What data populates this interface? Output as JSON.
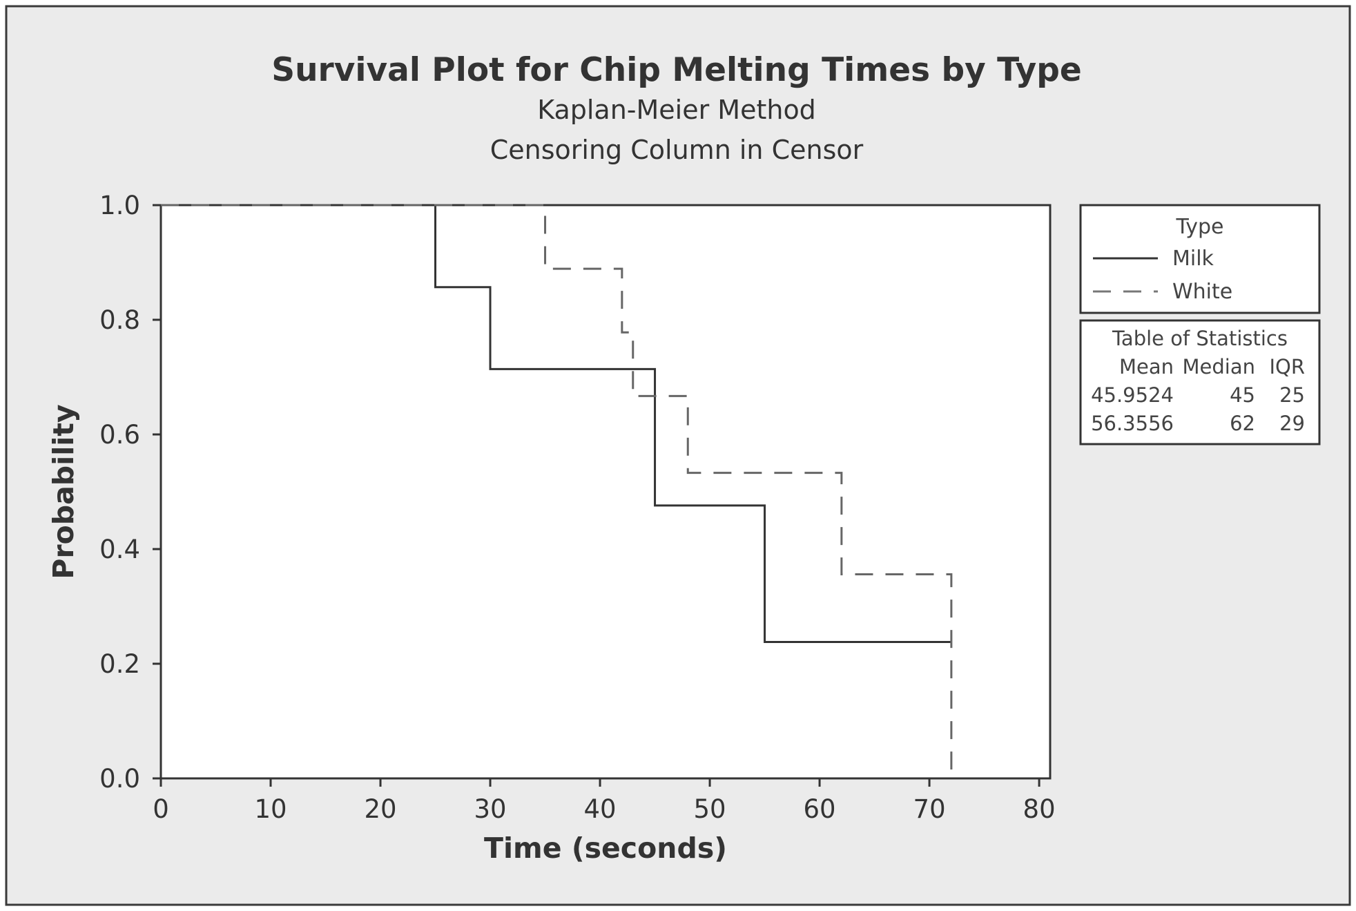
{
  "chart_data": {
    "type": "line",
    "subtype": "kaplan-meier-step",
    "title": "Survival Plot for Chip Melting Times by Type",
    "subtitle": [
      "Kaplan-Meier Method",
      "Censoring Column in Censor"
    ],
    "xlabel": "Time (seconds)",
    "ylabel": "Probability",
    "xlim": [
      0,
      81
    ],
    "ylim": [
      0,
      1
    ],
    "xticks": [
      "0",
      "10",
      "20",
      "30",
      "40",
      "50",
      "60",
      "70",
      "80"
    ],
    "yticks": [
      "0.0",
      "0.2",
      "0.4",
      "0.6",
      "0.8",
      "1.0"
    ],
    "grid": false,
    "legend": {
      "title": "Type",
      "position": "right",
      "entries": [
        "Milk",
        "White"
      ]
    },
    "series": [
      {
        "name": "Milk",
        "style": "solid",
        "color": "#333333",
        "x": [
          0,
          25,
          30,
          45,
          55,
          72
        ],
        "y": [
          1.0,
          0.857,
          0.714,
          0.476,
          0.238,
          0.238
        ]
      },
      {
        "name": "White",
        "style": "dashed",
        "color": "#666666",
        "x": [
          0,
          35,
          42,
          43,
          48,
          62,
          72,
          72
        ],
        "y": [
          1.0,
          0.889,
          0.778,
          0.667,
          0.533,
          0.356,
          0.356,
          0.0
        ]
      }
    ],
    "stats_table": {
      "title": "Table of Statistics",
      "headers": [
        "Mean",
        "Median",
        "IQR"
      ],
      "rows": [
        [
          "45.9524",
          "45",
          "25"
        ],
        [
          "56.3556",
          "62",
          "29"
        ]
      ]
    }
  }
}
